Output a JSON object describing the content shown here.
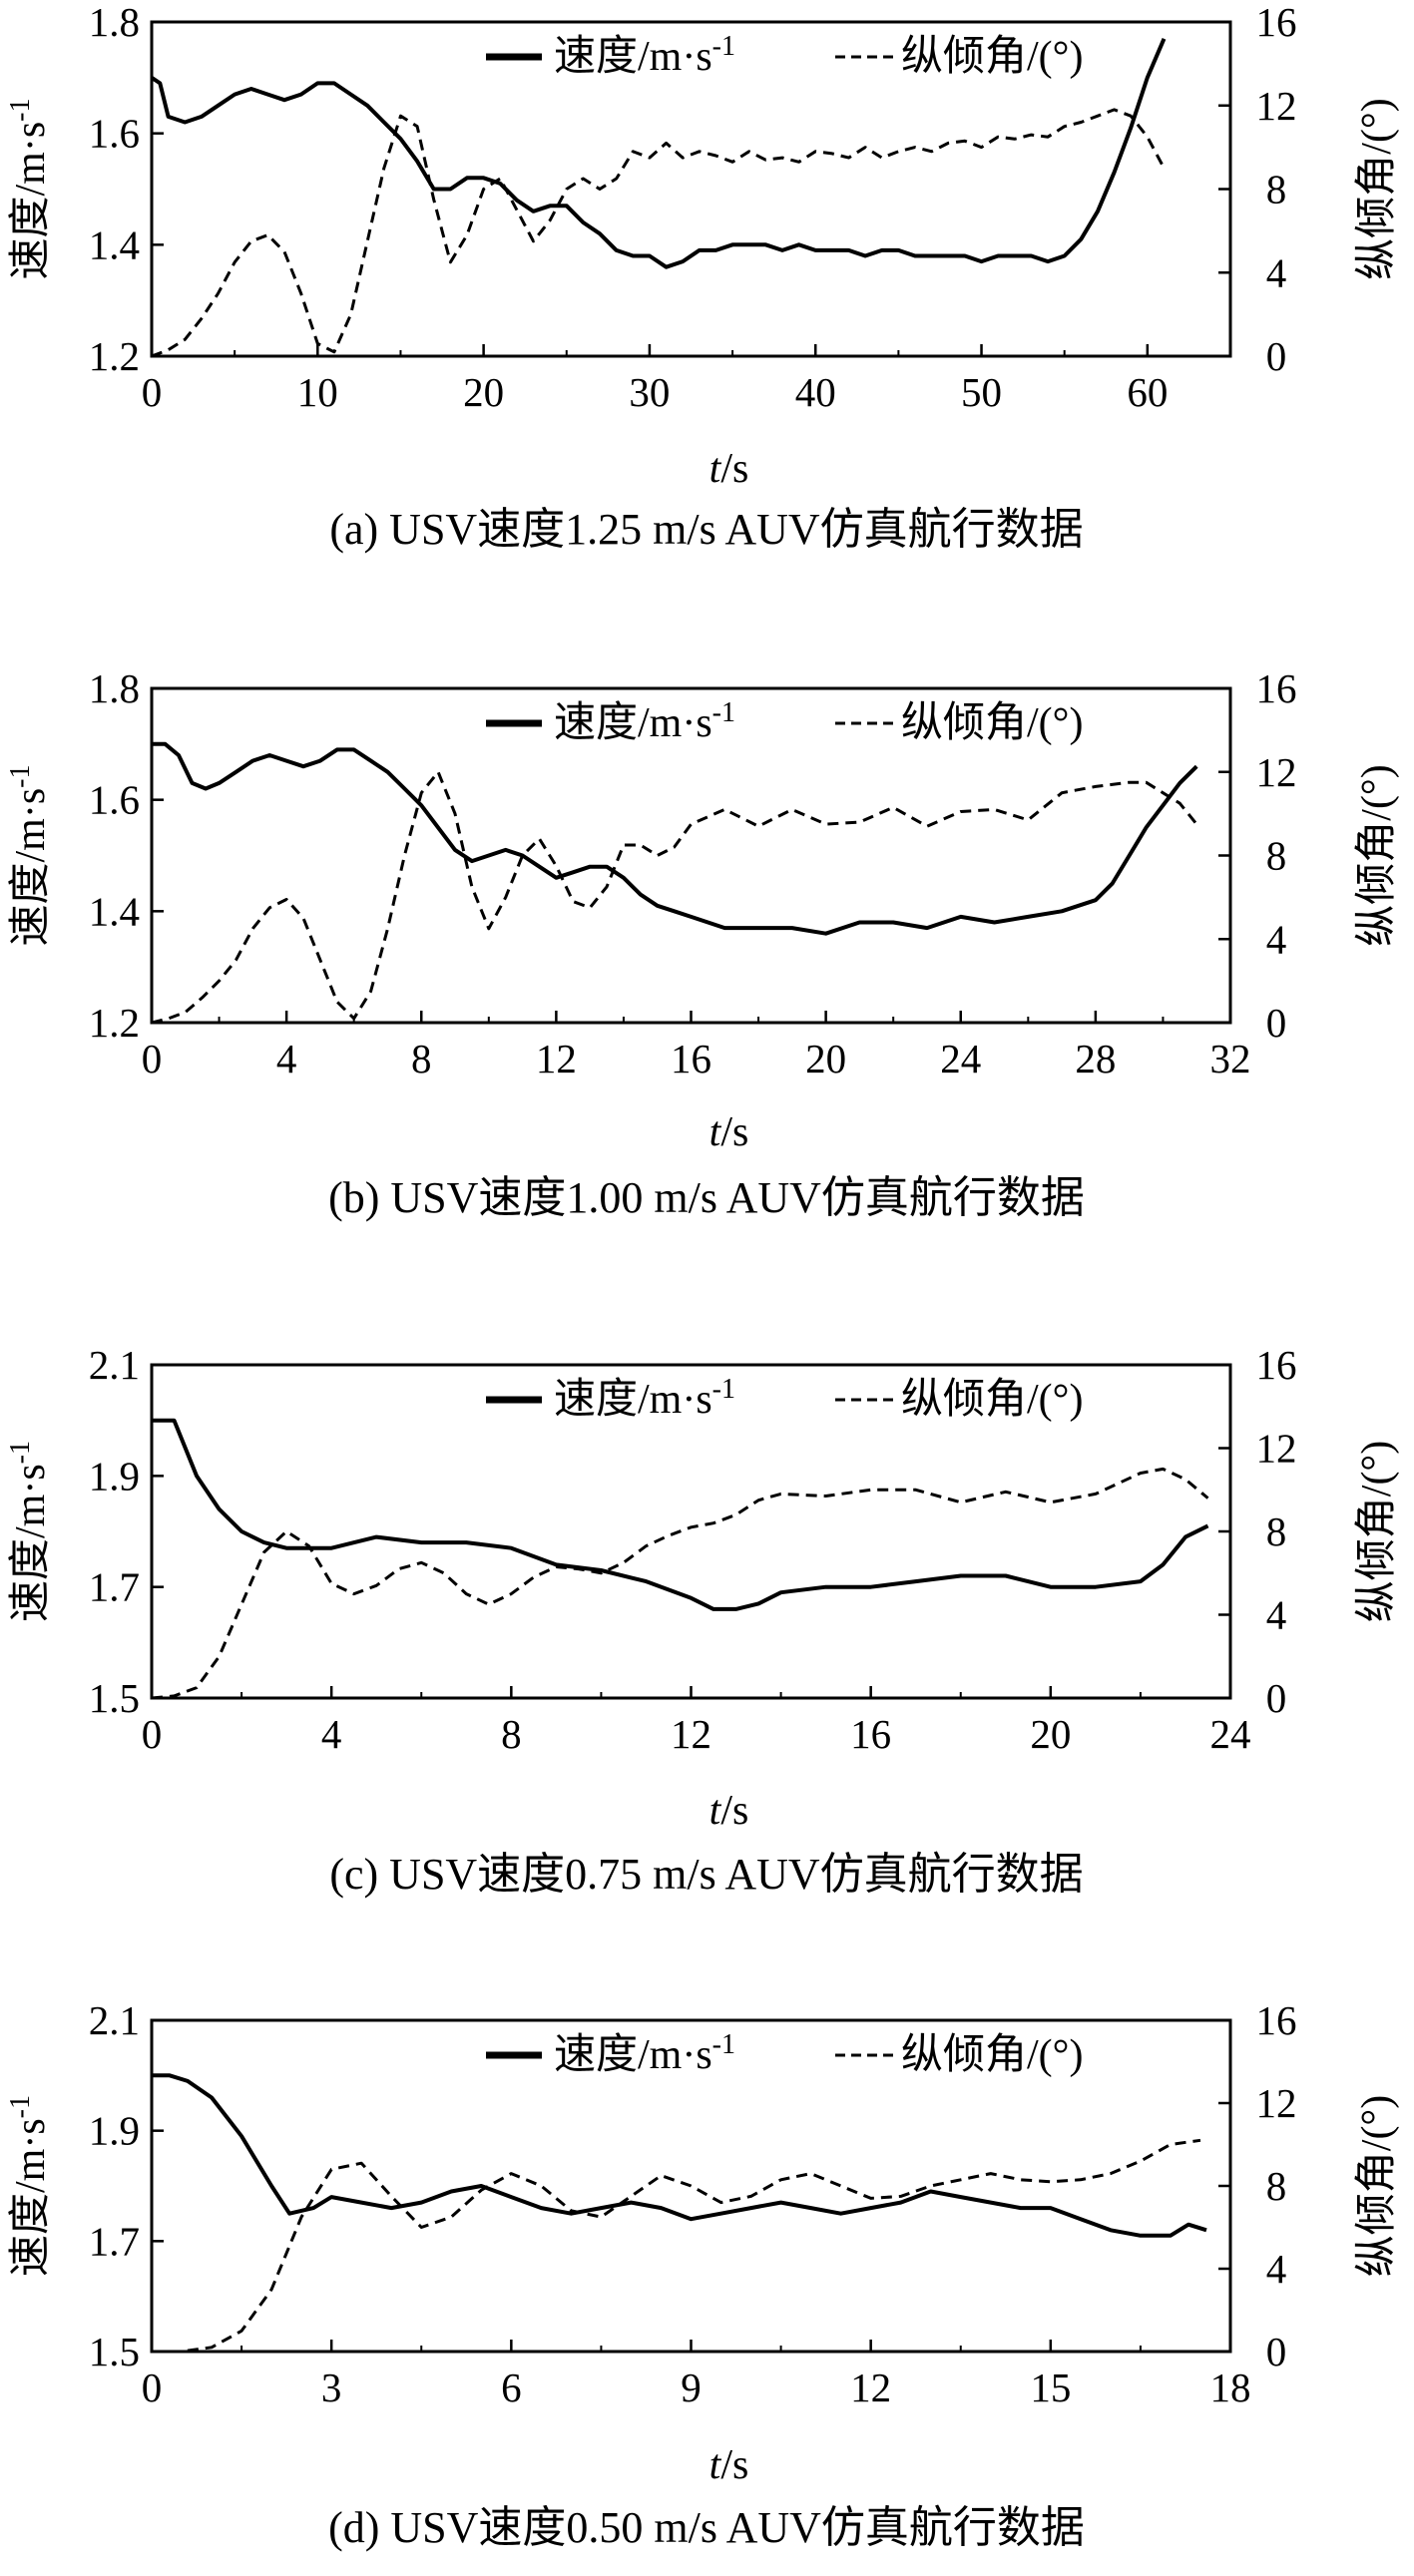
{
  "captions": [
    "(a) USV速度1.25 m/s AUV仿真航行数据",
    "(b) USV速度1.00 m/s AUV仿真航行数据",
    "(c) USV速度0.75 m/s AUV仿真航行数据",
    "(d) USV速度0.50 m/s AUV仿真航行数据"
  ],
  "chart_data": [
    {
      "type": "line",
      "caption": "(a) USV速度1.25 m/s AUV仿真航行数据",
      "xlabel": "t/s",
      "ylabel_left": "速度/m·s-1",
      "ylabel_right": "纵倾角/(°)",
      "xlim": [
        0,
        65
      ],
      "xticks": [
        0,
        10,
        20,
        30,
        40,
        50,
        60
      ],
      "ylim_left": [
        1.2,
        1.8
      ],
      "yticks_left": [
        "1.2",
        "1.4",
        "1.6",
        "1.8"
      ],
      "ylim_right": [
        0,
        16
      ],
      "yticks_right": [
        "0",
        "4",
        "8",
        "12",
        "16"
      ],
      "legend_position": "top-right",
      "series": [
        {
          "name": "速度/m·s-1",
          "axis": "left",
          "style": "solid",
          "x": [
            0,
            0.5,
            1,
            2,
            3,
            4,
            5,
            6,
            7,
            8,
            9,
            10,
            11,
            12,
            13,
            14,
            15,
            16,
            17,
            18,
            19,
            20,
            21,
            22,
            23,
            24,
            25,
            26,
            27,
            28,
            29,
            30,
            31,
            32,
            33,
            34,
            35,
            36,
            37,
            38,
            39,
            40,
            41,
            42,
            43,
            44,
            45,
            46,
            47,
            48,
            49,
            50,
            51,
            52,
            53,
            54,
            55,
            56,
            57,
            58,
            59,
            60,
            61
          ],
          "y": [
            1.7,
            1.69,
            1.63,
            1.62,
            1.63,
            1.65,
            1.67,
            1.68,
            1.67,
            1.66,
            1.67,
            1.69,
            1.69,
            1.67,
            1.65,
            1.62,
            1.59,
            1.55,
            1.5,
            1.5,
            1.52,
            1.52,
            1.51,
            1.48,
            1.46,
            1.47,
            1.47,
            1.44,
            1.42,
            1.39,
            1.38,
            1.38,
            1.36,
            1.37,
            1.39,
            1.39,
            1.4,
            1.4,
            1.4,
            1.39,
            1.4,
            1.39,
            1.39,
            1.39,
            1.38,
            1.39,
            1.39,
            1.38,
            1.38,
            1.38,
            1.38,
            1.37,
            1.38,
            1.38,
            1.38,
            1.37,
            1.38,
            1.41,
            1.46,
            1.53,
            1.61,
            1.7,
            1.77
          ]
        },
        {
          "name": "纵倾角/(°)",
          "axis": "right",
          "style": "dashed",
          "x": [
            0,
            1,
            2,
            3,
            4,
            5,
            6,
            7,
            8,
            9,
            10,
            11,
            12,
            13,
            14,
            15,
            16,
            17,
            18,
            19,
            20,
            21,
            22,
            23,
            24,
            25,
            26,
            27,
            28,
            29,
            30,
            31,
            32,
            33,
            34,
            35,
            36,
            37,
            38,
            39,
            40,
            41,
            42,
            43,
            44,
            45,
            46,
            47,
            48,
            49,
            50,
            51,
            52,
            53,
            54,
            55,
            56,
            57,
            58,
            59,
            60,
            61
          ],
          "y": [
            0,
            0.3,
            0.8,
            1.8,
            3.0,
            4.5,
            5.5,
            5.8,
            5.0,
            3.0,
            0.6,
            0.2,
            2.0,
            5.5,
            9.0,
            11.5,
            11.0,
            7.5,
            4.5,
            5.8,
            8.0,
            8.5,
            7.0,
            5.5,
            6.5,
            8.0,
            8.5,
            8.0,
            8.5,
            9.8,
            9.5,
            10.2,
            9.5,
            9.8,
            9.6,
            9.3,
            9.8,
            9.4,
            9.5,
            9.3,
            9.8,
            9.7,
            9.5,
            10.0,
            9.5,
            9.8,
            10.0,
            9.8,
            10.2,
            10.3,
            10.0,
            10.5,
            10.4,
            10.6,
            10.5,
            11.0,
            11.2,
            11.5,
            11.8,
            11.5,
            10.5,
            9.0
          ]
        }
      ]
    },
    {
      "type": "line",
      "caption": "(b) USV速度1.00 m/s AUV仿真航行数据",
      "xlabel": "t/s",
      "ylabel_left": "速度/m·s-1",
      "ylabel_right": "纵倾角/(°)",
      "xlim": [
        0,
        32
      ],
      "xticks": [
        0,
        4,
        8,
        12,
        16,
        20,
        24,
        28,
        32
      ],
      "ylim_left": [
        1.2,
        1.8
      ],
      "yticks_left": [
        "1.2",
        "1.4",
        "1.6",
        "1.8"
      ],
      "ylim_right": [
        0,
        16
      ],
      "yticks_right": [
        "0",
        "4",
        "8",
        "12",
        "16"
      ],
      "legend_position": "top-right",
      "series": [
        {
          "name": "速度/m·s-1",
          "axis": "left",
          "style": "solid",
          "x": [
            0,
            0.4,
            0.8,
            1.2,
            1.6,
            2,
            2.5,
            3,
            3.5,
            4,
            4.5,
            5,
            5.5,
            6,
            6.5,
            7,
            7.5,
            8,
            8.5,
            9,
            9.5,
            10,
            10.5,
            11,
            11.5,
            12,
            12.5,
            13,
            13.5,
            14,
            14.5,
            15,
            15.5,
            16,
            17,
            18,
            19,
            20,
            21,
            22,
            23,
            24,
            25,
            26,
            27,
            28,
            28.5,
            29,
            29.5,
            30,
            30.5,
            31
          ],
          "y": [
            1.7,
            1.7,
            1.68,
            1.63,
            1.62,
            1.63,
            1.65,
            1.67,
            1.68,
            1.67,
            1.66,
            1.67,
            1.69,
            1.69,
            1.67,
            1.65,
            1.62,
            1.59,
            1.55,
            1.51,
            1.49,
            1.5,
            1.51,
            1.5,
            1.48,
            1.46,
            1.47,
            1.48,
            1.48,
            1.46,
            1.43,
            1.41,
            1.4,
            1.39,
            1.37,
            1.37,
            1.37,
            1.36,
            1.38,
            1.38,
            1.37,
            1.39,
            1.38,
            1.39,
            1.4,
            1.42,
            1.45,
            1.5,
            1.55,
            1.59,
            1.63,
            1.66
          ]
        },
        {
          "name": "纵倾角/(°)",
          "axis": "right",
          "style": "dashed",
          "x": [
            0,
            0.5,
            1,
            1.5,
            2,
            2.5,
            3,
            3.5,
            4,
            4.5,
            5,
            5.5,
            6,
            6.5,
            7,
            7.5,
            8,
            8.5,
            9,
            9.5,
            10,
            10.5,
            11,
            11.5,
            12,
            12.5,
            13,
            13.5,
            14,
            14.5,
            15,
            15.5,
            16,
            17,
            18,
            19,
            20,
            21,
            22,
            23,
            24,
            25,
            26,
            27,
            28,
            29,
            29.5,
            30,
            30.5,
            31
          ],
          "y": [
            0,
            0.2,
            0.5,
            1.2,
            2.0,
            3.0,
            4.5,
            5.5,
            5.9,
            5.0,
            3.0,
            1.0,
            0.2,
            1.5,
            4.5,
            8.0,
            11.0,
            12.0,
            10.0,
            6.5,
            4.5,
            6.0,
            8.0,
            8.8,
            7.5,
            5.8,
            5.5,
            6.5,
            8.5,
            8.5,
            8.0,
            8.4,
            9.5,
            10.2,
            9.4,
            10.2,
            9.5,
            9.6,
            10.3,
            9.4,
            10.1,
            10.2,
            9.7,
            11.0,
            11.3,
            11.5,
            11.5,
            11.0,
            10.5,
            9.5
          ]
        }
      ]
    },
    {
      "type": "line",
      "caption": "(c) USV速度0.75 m/s AUV仿真航行数据",
      "xlabel": "t/s",
      "ylabel_left": "速度/m·s-1",
      "ylabel_right": "纵倾角/(°)",
      "xlim": [
        0,
        24
      ],
      "xticks": [
        0,
        4,
        8,
        12,
        16,
        20,
        24
      ],
      "ylim_left": [
        1.5,
        2.1
      ],
      "yticks_left": [
        "1.5",
        "1.7",
        "1.9",
        "2.1"
      ],
      "ylim_right": [
        0,
        16
      ],
      "yticks_right": [
        "0",
        "4",
        "8",
        "12",
        "16"
      ],
      "legend_position": "top-right",
      "series": [
        {
          "name": "速度/m·s-1",
          "axis": "left",
          "style": "solid",
          "x": [
            0,
            0.5,
            1,
            1.5,
            2,
            2.5,
            3,
            4,
            5,
            6,
            7,
            8,
            9,
            10,
            11,
            12,
            12.5,
            13,
            13.5,
            14,
            15,
            16,
            17,
            18,
            19,
            20,
            21,
            22,
            22.5,
            23,
            23.5
          ],
          "y": [
            2.0,
            2.0,
            1.9,
            1.84,
            1.8,
            1.78,
            1.77,
            1.77,
            1.79,
            1.78,
            1.78,
            1.77,
            1.74,
            1.73,
            1.71,
            1.68,
            1.66,
            1.66,
            1.67,
            1.69,
            1.7,
            1.7,
            1.71,
            1.72,
            1.72,
            1.7,
            1.7,
            1.71,
            1.74,
            1.79,
            1.81
          ]
        },
        {
          "name": "纵倾角/(°)",
          "axis": "right",
          "style": "dashed",
          "x": [
            0,
            0.5,
            1,
            1.5,
            2,
            2.5,
            3,
            3.5,
            4,
            4.5,
            5,
            5.5,
            6,
            6.5,
            7,
            7.5,
            8,
            8.5,
            9,
            9.5,
            10,
            10.5,
            11,
            11.5,
            12,
            12.5,
            13,
            13.5,
            14,
            15,
            16,
            17,
            18,
            19,
            20,
            21,
            22,
            22.5,
            23,
            23.5
          ],
          "y": [
            0,
            0.1,
            0.5,
            2.0,
            4.5,
            7.0,
            8.0,
            7.3,
            5.5,
            5.0,
            5.4,
            6.2,
            6.5,
            6.0,
            5.0,
            4.5,
            5.0,
            5.8,
            6.3,
            6.2,
            6.0,
            6.5,
            7.3,
            7.8,
            8.2,
            8.4,
            8.8,
            9.5,
            9.8,
            9.7,
            10.0,
            10.0,
            9.4,
            9.9,
            9.4,
            9.8,
            10.8,
            11.0,
            10.5,
            9.6
          ]
        }
      ]
    },
    {
      "type": "line",
      "caption": "(d) USV速度0.50 m/s AUV仿真航行数据",
      "xlabel": "t/s",
      "ylabel_left": "速度/m·s-1",
      "ylabel_right": "纵倾角/(°)",
      "xlim": [
        0,
        18
      ],
      "xticks": [
        0,
        3,
        6,
        9,
        12,
        15,
        18
      ],
      "ylim_left": [
        1.5,
        2.1
      ],
      "yticks_left": [
        "1.5",
        "1.7",
        "1.9",
        "2.1"
      ],
      "ylim_right": [
        0,
        16
      ],
      "yticks_right": [
        "0",
        "4",
        "8",
        "12",
        "16"
      ],
      "legend_position": "top-right",
      "series": [
        {
          "name": "速度/m·s-1",
          "axis": "left",
          "style": "solid",
          "x": [
            0,
            0.3,
            0.6,
            1,
            1.5,
            2,
            2.3,
            2.7,
            3,
            3.5,
            4,
            4.5,
            5,
            5.5,
            6,
            6.5,
            7,
            7.5,
            8,
            8.5,
            9,
            9.5,
            10,
            10.5,
            11,
            11.5,
            12,
            12.5,
            13,
            13.5,
            14,
            14.5,
            15,
            15.5,
            16,
            16.5,
            17,
            17.3,
            17.6
          ],
          "y": [
            2.0,
            2.0,
            1.99,
            1.96,
            1.89,
            1.8,
            1.75,
            1.76,
            1.78,
            1.77,
            1.76,
            1.77,
            1.79,
            1.8,
            1.78,
            1.76,
            1.75,
            1.76,
            1.77,
            1.76,
            1.74,
            1.75,
            1.76,
            1.77,
            1.76,
            1.75,
            1.76,
            1.77,
            1.79,
            1.78,
            1.77,
            1.76,
            1.76,
            1.74,
            1.72,
            1.71,
            1.71,
            1.73,
            1.72
          ]
        },
        {
          "name": "纵倾角/(°)",
          "axis": "right",
          "style": "dashed",
          "x": [
            0,
            0.5,
            1,
            1.5,
            2,
            2.5,
            3,
            3.5,
            4,
            4.5,
            5,
            5.5,
            6,
            6.5,
            7,
            7.5,
            8,
            8.5,
            9,
            9.5,
            10,
            10.5,
            11,
            11.5,
            12,
            12.5,
            13,
            13.5,
            14,
            14.5,
            15,
            15.5,
            16,
            16.5,
            17,
            17.5
          ],
          "y": [
            0,
            0,
            0.2,
            1.0,
            3.0,
            6.5,
            8.8,
            9.1,
            7.5,
            6.0,
            6.5,
            7.8,
            8.6,
            8.0,
            6.8,
            6.5,
            7.5,
            8.5,
            8.0,
            7.2,
            7.5,
            8.3,
            8.6,
            8.0,
            7.4,
            7.5,
            8.0,
            8.3,
            8.6,
            8.3,
            8.2,
            8.3,
            8.6,
            9.2,
            10.0,
            10.2
          ]
        }
      ]
    }
  ]
}
